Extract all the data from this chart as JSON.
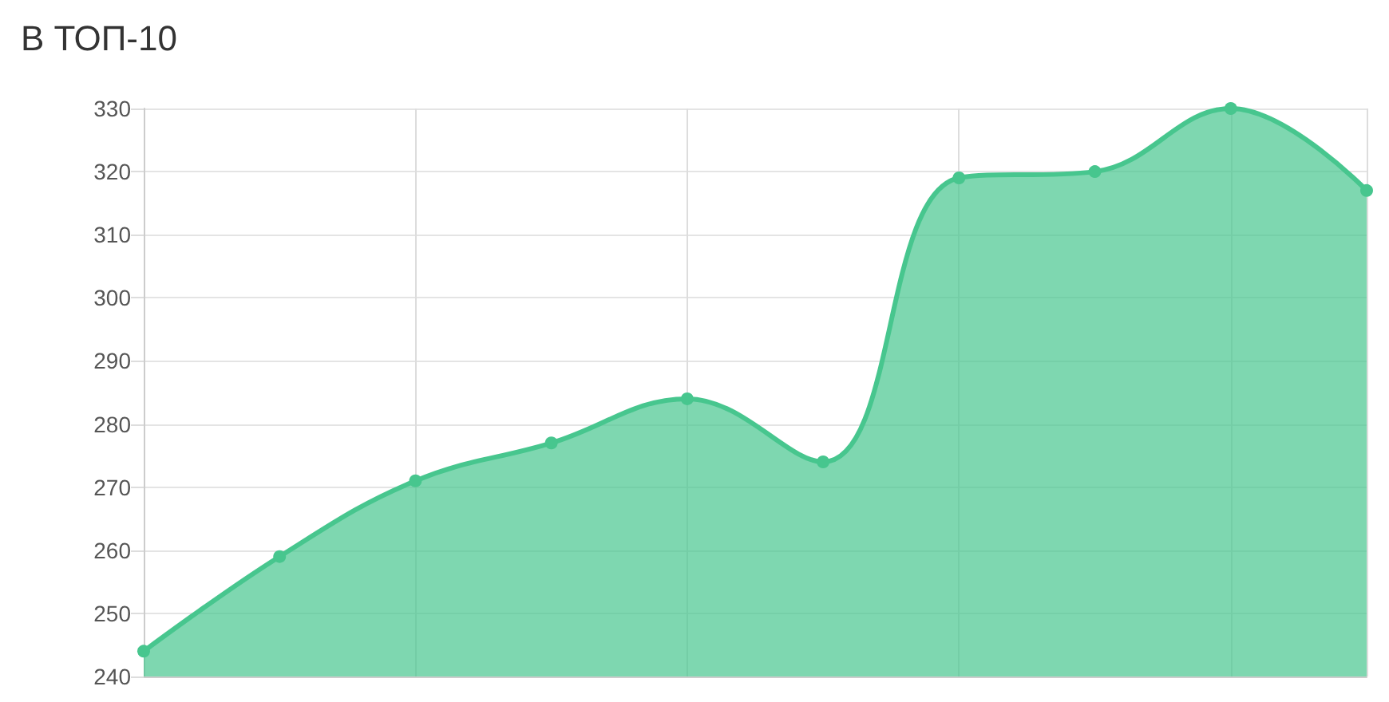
{
  "chart_data": {
    "type": "area",
    "title": "В ТОП-10",
    "categories": [
      null,
      null,
      null,
      null,
      null,
      null,
      null,
      null,
      null,
      null
    ],
    "series": [
      {
        "color": "#47c68e",
        "values": [
          244,
          259,
          271,
          277,
          284,
          274,
          319,
          320,
          330,
          317
        ]
      }
    ],
    "ylim": [
      240,
      330
    ],
    "yticks": [
      240,
      250,
      260,
      270,
      280,
      290,
      300,
      310,
      320,
      330
    ],
    "grid": true,
    "marker": "circle"
  }
}
